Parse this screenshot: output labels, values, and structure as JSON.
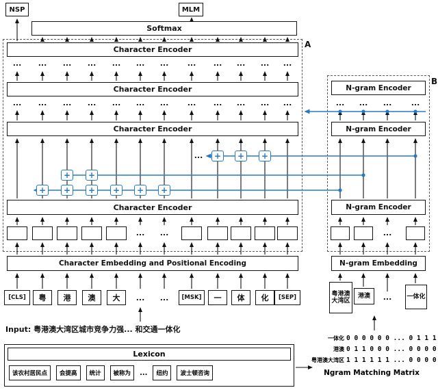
{
  "colors": {
    "accent": "#2878c8",
    "line": "#111111"
  },
  "tasks": {
    "nsp": "NSP",
    "mlm": "MLM"
  },
  "softmax": "Softmax",
  "labels": {
    "char_encoder": "Character Encoder",
    "char_embedding": "Character Embedding and Positional Encoding",
    "ngram_encoder": "N-gram Encoder",
    "ngram_embedding": "N-gram Embedding",
    "block_a": "A",
    "block_b": "B",
    "dots": "...",
    "plus": "+"
  },
  "char_tokens": [
    "[CLS]",
    "粤",
    "港",
    "澳",
    "大",
    "...",
    "...",
    "[MSK]",
    "一",
    "体",
    "化",
    "[SEP]"
  ],
  "ngram_tokens": [
    "粤港澳大湾区",
    "港澳",
    "...",
    "一体化"
  ],
  "input": {
    "prefix": "Input:",
    "sentence": "粤港澳大湾区城市竞争力强... 和交通一体化"
  },
  "lexicon": {
    "title": "Lexicon",
    "entries": [
      "该农村居民点",
      "会提高",
      "统计",
      "被称为",
      "...",
      "纽约",
      "波士顿咨询"
    ]
  },
  "matrix": {
    "caption": "Ngram Matching Matrix",
    "rows": [
      {
        "label": "一体化",
        "values": "0 0 0 0 0 0 ... 0 1 1 1"
      },
      {
        "label": "港澳",
        "values": "0 1 1 0 0 0 ... 0 0 0 0"
      },
      {
        "label": "粤港澳大湾区",
        "values": "1 1 1 1 1 1 ... 0 0 0 0"
      }
    ]
  }
}
